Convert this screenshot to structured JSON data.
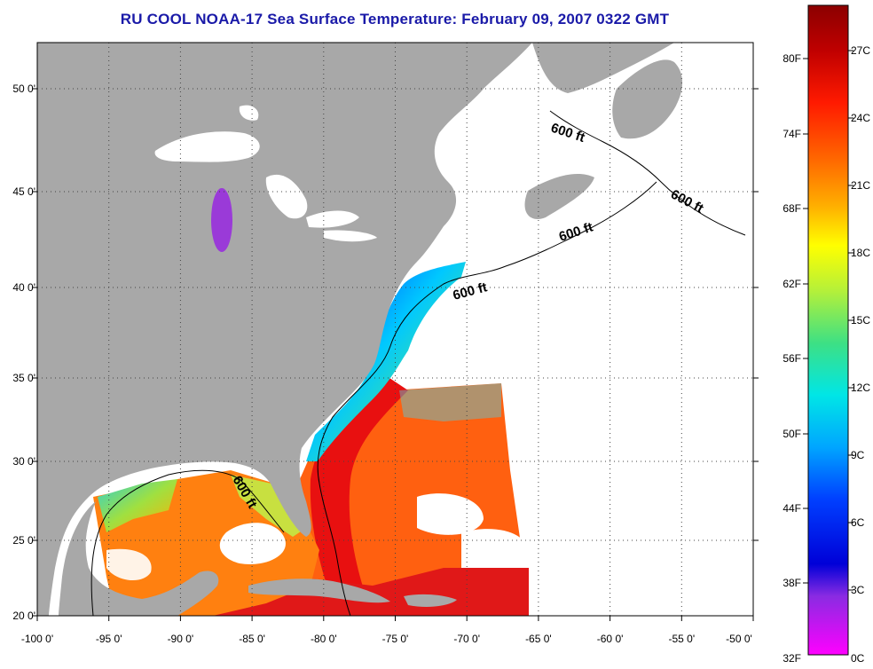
{
  "title": "RU COOL  NOAA-17  Sea Surface Temperature:  February 09, 2007 0322 GMT",
  "map": {
    "lon_ticks": [
      "-100 0'",
      "-95 0'",
      "-90 0'",
      "-85 0'",
      "-80 0'",
      "-75 0'",
      "-70 0'",
      "-65 0'",
      "-60 0'",
      "-55 0'",
      "-50 0'"
    ],
    "lat_ticks": [
      "50 0'",
      "45 0'",
      "40 0'",
      "35 0'",
      "30 0'",
      "25 0'",
      "20 0'"
    ],
    "contour_label": "600 ft",
    "colors": {
      "land": "#a8a8a8",
      "no_data": "#ffffff",
      "frame": "#000000",
      "grid": "#555555"
    }
  },
  "colorbar": {
    "fahrenheit_labels": [
      "80F",
      "74F",
      "68F",
      "62F",
      "56F",
      "50F",
      "44F",
      "38F",
      "32F"
    ],
    "celsius_labels": [
      "27C",
      "24C",
      "21C",
      "18C",
      "15C",
      "12C",
      "9C",
      "6C",
      "3C",
      "0C"
    ],
    "range_c": [
      0,
      29
    ],
    "colors_top_to_bottom": [
      "#8b0000",
      "#d40000",
      "#ff2a00",
      "#ff7a00",
      "#ffcc00",
      "#ffff00",
      "#a8f03a",
      "#35e08a",
      "#00e6e6",
      "#00aaff",
      "#0044ff",
      "#0000e0",
      "#8a2be2",
      "#ff00ff"
    ]
  }
}
